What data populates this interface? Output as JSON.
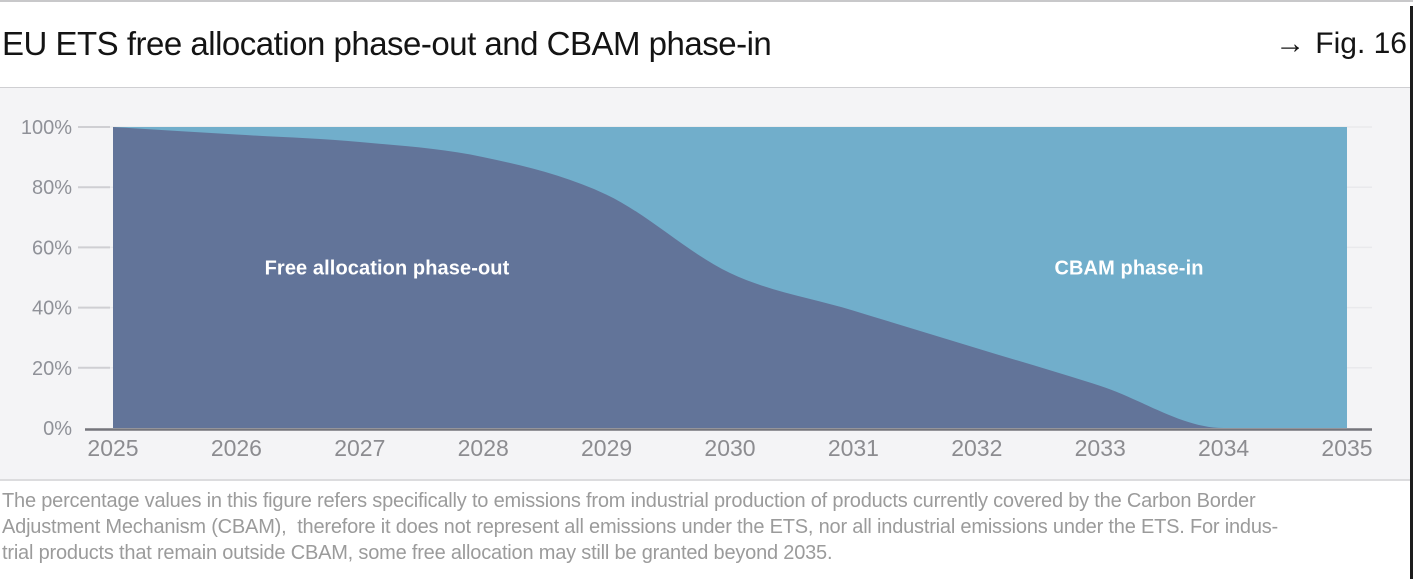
{
  "header": {
    "title": "EU ETS free allocation phase-out and CBAM phase-in",
    "figure_ref_arrow": "→",
    "figure_ref": "Fig. 16"
  },
  "chart_data": {
    "type": "area",
    "stacked": true,
    "curve": "monotone",
    "x": [
      2025,
      2026,
      2027,
      2028,
      2029,
      2030,
      2031,
      2032,
      2033,
      2034,
      2035
    ],
    "x_tick_labels": [
      "2025",
      "2026",
      "2027",
      "2028",
      "2029",
      "2030",
      "2031",
      "2032",
      "2033",
      "2034",
      "2035"
    ],
    "series": [
      {
        "name": "Free allocation phase-out",
        "values": [
          100,
          97.5,
          95,
          90,
          77.5,
          51.5,
          39,
          26.5,
          14,
          0,
          0
        ],
        "color": "#627499"
      },
      {
        "name": "CBAM phase-in",
        "values": [
          0,
          2.5,
          5,
          10,
          22.5,
          48.5,
          61,
          73.5,
          86,
          100,
          100
        ],
        "color": "#71aecb"
      }
    ],
    "area_labels": [
      {
        "text": "Free allocation phase-out"
      },
      {
        "text": "CBAM phase-in"
      }
    ],
    "y_ticks": [
      {
        "value": 100,
        "label": "100%"
      },
      {
        "value": 80,
        "label": "80%"
      },
      {
        "value": 60,
        "label": "60%"
      },
      {
        "value": 40,
        "label": "40%"
      },
      {
        "value": 20,
        "label": "20%"
      },
      {
        "value": 0,
        "label": "0%"
      }
    ],
    "ylim": [
      0,
      100
    ],
    "grid": true,
    "legend": "labels-inside-areas",
    "title": "EU ETS free allocation phase-out and CBAM phase-in"
  },
  "footnote": {
    "lines": [
      "The percentage values in this figure refers specifically to emissions from industrial production of products currently covered by the Carbon Border",
      "Adjustment Mechanism (CBAM),  therefore it does not represent all emissions under the ETS, nor all industrial emissions under the ETS. For indus-",
      "trial products that remain outside CBAM, some free allocation may still be granted beyond 2035."
    ]
  },
  "colors": {
    "free_allocation_area": "#627499",
    "cbam_area": "#71aecb",
    "panel_background": "#f4f4f6",
    "grid_line": "#e9e9ec",
    "tick_line": "#cfcfd3",
    "axis_line": "#75757b",
    "axis_label": "#8f9198",
    "title_text": "#141414",
    "footnote_text": "#9b9b9b",
    "top_bar": "#c8c8ca",
    "page_edge": "#1c1c1c"
  }
}
